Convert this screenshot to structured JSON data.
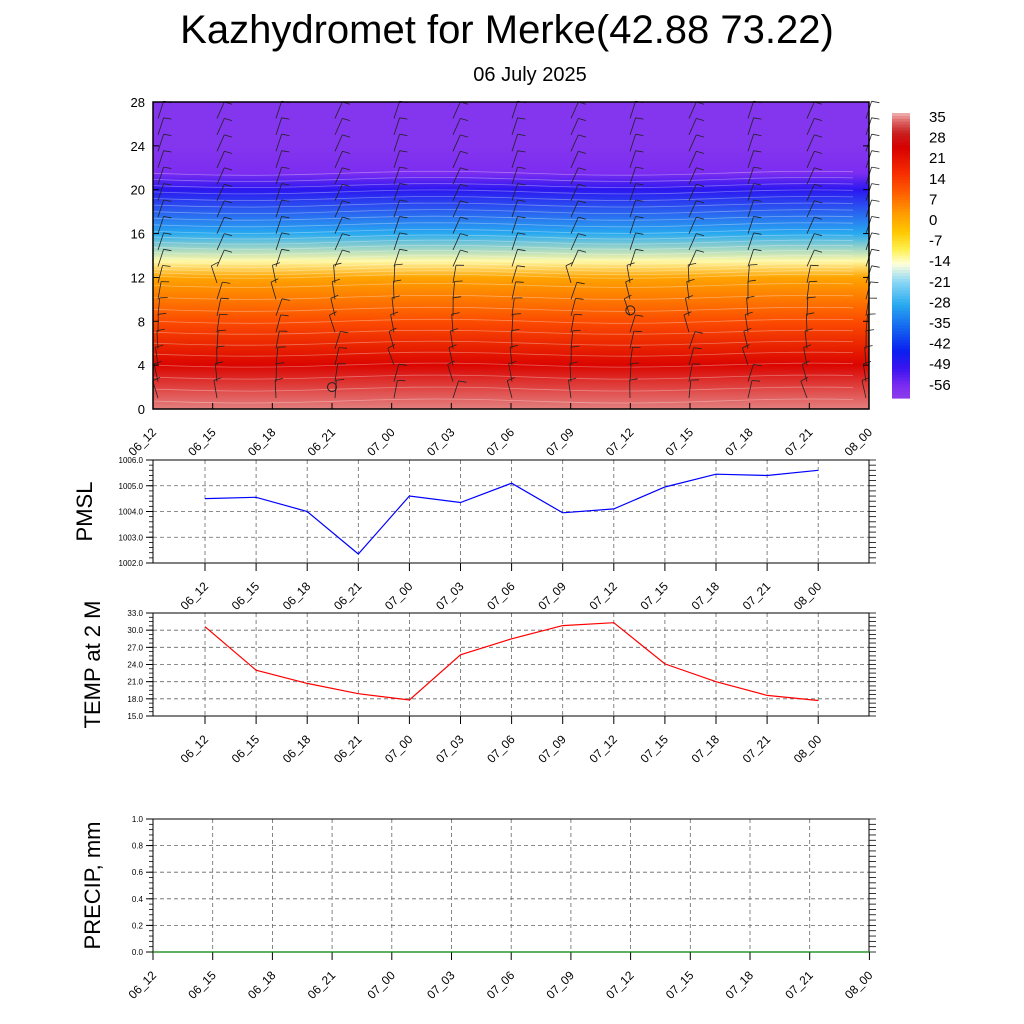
{
  "page": {
    "title": "Kazhydromet for Merke(42.88 73.22)",
    "subtitle": "06 July 2025"
  },
  "chart_data": [
    {
      "type": "heatmap",
      "description_role": "cross-section temperature with wind barbs",
      "x_categories": [
        "06_12",
        "06_15",
        "06_18",
        "06_21",
        "07_00",
        "07_03",
        "07_06",
        "07_09",
        "07_12",
        "07_15",
        "07_18",
        "07_21",
        "08_00"
      ],
      "y_ticks": [
        0,
        4,
        8,
        12,
        16,
        20,
        24,
        28
      ],
      "ylim": [
        0,
        28
      ],
      "colorbar_labels": [
        "35",
        "28",
        "21",
        "14",
        "7",
        "0",
        "-7",
        "-14",
        "-21",
        "-28",
        "-35",
        "-42",
        "-49",
        "-56"
      ],
      "colorbar_range": [
        -60,
        38
      ],
      "temperature_profile_by_level": [
        {
          "y": 0,
          "t": 36
        },
        {
          "y": 4,
          "t": 25
        },
        {
          "y": 8,
          "t": 13
        },
        {
          "y": 12,
          "t": 2
        },
        {
          "y": 13.5,
          "t": -12
        },
        {
          "y": 16,
          "t": -28
        },
        {
          "y": 20,
          "t": -48
        },
        {
          "y": 21.5,
          "t": -56
        },
        {
          "y": 24,
          "t": -58
        },
        {
          "y": 28,
          "t": -58
        }
      ],
      "markers": [
        {
          "x": "06_21",
          "y": 2
        },
        {
          "x": "07_12",
          "y": 9
        }
      ]
    },
    {
      "type": "line",
      "ylabel": "PMSL",
      "categories": [
        "06_12",
        "06_15",
        "06_18",
        "06_21",
        "07_00",
        "07_03",
        "07_06",
        "07_09",
        "07_12",
        "07_15",
        "07_18",
        "07_21",
        "08_00"
      ],
      "y_tick_labels": [
        "1002.0",
        "1003.0",
        "1004.0",
        "1005.0",
        "1006.0"
      ],
      "ylim": [
        1002,
        1006
      ],
      "series": [
        {
          "color": "#0000ff",
          "values": [
            1004.5,
            1004.55,
            1004.0,
            1002.35,
            1004.6,
            1004.35,
            1005.1,
            1003.95,
            1004.1,
            1004.95,
            1005.45,
            1005.4,
            1005.6
          ]
        }
      ],
      "grid": true
    },
    {
      "type": "line",
      "ylabel": "TEMP at 2 M",
      "categories": [
        "06_12",
        "06_15",
        "06_18",
        "06_21",
        "07_00",
        "07_03",
        "07_06",
        "07_09",
        "07_12",
        "07_15",
        "07_18",
        "07_21",
        "08_00"
      ],
      "y_tick_labels": [
        "15.0",
        "18.0",
        "21.0",
        "24.0",
        "27.0",
        "30.0",
        "33.0"
      ],
      "ylim": [
        15,
        33
      ],
      "series": [
        {
          "color": "#ff0000",
          "values": [
            30.6,
            23.0,
            20.7,
            18.9,
            17.8,
            25.7,
            28.5,
            30.8,
            31.3,
            24.1,
            21.0,
            18.6,
            17.7
          ]
        }
      ],
      "grid": true
    },
    {
      "type": "line",
      "ylabel": "PRECIP, mm",
      "categories": [
        "06_12",
        "06_15",
        "06_18",
        "06_21",
        "07_00",
        "07_03",
        "07_06",
        "07_09",
        "07_12",
        "07_15",
        "07_18",
        "07_21",
        "08_00"
      ],
      "y_tick_labels": [
        "0.0",
        "0.2",
        "0.4",
        "0.6",
        "0.8",
        "1.0"
      ],
      "ylim": [
        0,
        1
      ],
      "series": [
        {
          "color": "#008000",
          "values": [
            0,
            0,
            0,
            0,
            0,
            0,
            0,
            0,
            0,
            0,
            0,
            0,
            0
          ]
        }
      ],
      "grid": true
    }
  ]
}
